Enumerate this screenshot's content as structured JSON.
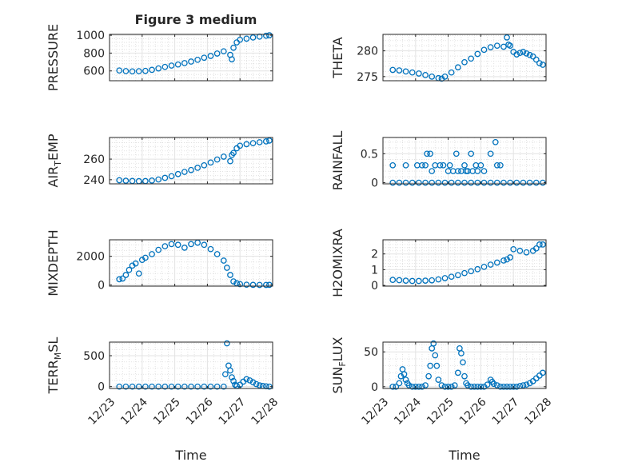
{
  "figure": {
    "title": "Figure 3 medium",
    "marker_color": "#0072BD"
  },
  "chart_data": [
    {
      "type": "scatter",
      "ylabel_parts": [
        [
          "PRESSURE",
          ""
        ]
      ],
      "xlim": [
        0,
        5
      ],
      "ylim": [
        490,
        1010
      ],
      "yticks": [
        600,
        800,
        1000
      ],
      "yticklabels": [
        "600",
        "800",
        "1000"
      ],
      "xticks": [
        0,
        1,
        2,
        3,
        4,
        5
      ],
      "xticklabels": [],
      "grid": true,
      "minor_grid": true,
      "series": [
        {
          "x": [
            0.3,
            0.5,
            0.7,
            0.9,
            1.1,
            1.3,
            1.5,
            1.7,
            1.9,
            2.1,
            2.3,
            2.5,
            2.7,
            2.9,
            3.1,
            3.3,
            3.5,
            3.7,
            3.75,
            3.8,
            3.9,
            4.0,
            4.2,
            4.4,
            4.6,
            4.8,
            4.9
          ],
          "y": [
            605,
            598,
            595,
            597,
            600,
            612,
            628,
            645,
            660,
            672,
            688,
            705,
            725,
            748,
            768,
            795,
            820,
            780,
            730,
            860,
            920,
            950,
            962,
            975,
            985,
            995,
            1000
          ]
        }
      ]
    },
    {
      "type": "scatter",
      "ylabel_parts": [
        [
          "THETA",
          ""
        ]
      ],
      "xlim": [
        0,
        5
      ],
      "ylim": [
        274.2,
        283.2
      ],
      "yticks": [
        275,
        280
      ],
      "yticklabels": [
        "275",
        "280"
      ],
      "xticks": [
        0,
        1,
        2,
        3,
        4,
        5
      ],
      "xticklabels": [],
      "grid": true,
      "minor_grid": true,
      "series": [
        {
          "x": [
            0.3,
            0.5,
            0.7,
            0.9,
            1.1,
            1.3,
            1.5,
            1.7,
            1.8,
            1.9,
            2.1,
            2.3,
            2.5,
            2.7,
            2.9,
            3.1,
            3.3,
            3.5,
            3.7,
            3.8,
            3.85,
            3.9,
            4.0,
            4.1,
            4.2,
            4.3,
            4.4,
            4.5,
            4.6,
            4.7,
            4.8,
            4.9
          ],
          "y": [
            276.3,
            276.2,
            276.0,
            275.8,
            275.6,
            275.3,
            275.0,
            274.7,
            274.6,
            275.0,
            275.8,
            276.8,
            277.8,
            278.5,
            279.4,
            280.2,
            280.7,
            281.0,
            280.8,
            282.6,
            281.2,
            281.0,
            279.8,
            279.3,
            279.6,
            279.8,
            279.5,
            279.2,
            278.9,
            278.3,
            277.6,
            277.3
          ]
        }
      ]
    },
    {
      "type": "scatter",
      "ylabel_parts": [
        [
          "AIR",
          ""
        ],
        [
          "T",
          "sub"
        ],
        [
          "EMP",
          ""
        ]
      ],
      "xlim": [
        0,
        5
      ],
      "ylim": [
        236,
        281
      ],
      "yticks": [
        240,
        260
      ],
      "yticklabels": [
        "240",
        "260"
      ],
      "xticks": [
        0,
        1,
        2,
        3,
        4,
        5
      ],
      "xticklabels": [],
      "grid": true,
      "minor_grid": true,
      "series": [
        {
          "x": [
            0.3,
            0.5,
            0.7,
            0.9,
            1.1,
            1.3,
            1.5,
            1.7,
            1.9,
            2.1,
            2.3,
            2.5,
            2.7,
            2.9,
            3.1,
            3.3,
            3.5,
            3.7,
            3.75,
            3.8,
            3.9,
            4.0,
            4.2,
            4.4,
            4.6,
            4.8,
            4.9
          ],
          "y": [
            239.5,
            239.0,
            238.8,
            238.6,
            238.7,
            239.2,
            240.2,
            241.8,
            243.4,
            245.5,
            247.6,
            249.4,
            251.6,
            254.0,
            256.7,
            259.6,
            262.4,
            258.0,
            264.0,
            266.0,
            270.5,
            273.0,
            274.5,
            275.5,
            276.4,
            277.2,
            278.0
          ]
        }
      ]
    },
    {
      "type": "scatter",
      "ylabel_parts": [
        [
          "RAINFALL",
          ""
        ]
      ],
      "xlim": [
        0,
        5
      ],
      "ylim": [
        -0.02,
        0.78
      ],
      "yticks": [
        0,
        0.5
      ],
      "yticklabels": [
        "0",
        "0.5"
      ],
      "xticks": [
        0,
        1,
        2,
        3,
        4,
        5
      ],
      "xticklabels": [],
      "grid": true,
      "minor_grid": true,
      "series": [
        {
          "x": [
            0.3,
            0.5,
            0.7,
            0.9,
            1.1,
            1.3,
            1.5,
            1.7,
            1.9,
            2.1,
            2.3,
            2.5,
            2.7,
            2.9,
            3.1,
            3.3,
            3.5,
            3.7,
            3.9,
            4.1,
            4.3,
            4.5,
            4.7,
            4.9,
            0.3,
            0.7,
            1.05,
            1.2,
            1.3,
            1.35,
            1.45,
            1.5,
            1.6,
            1.75,
            1.85,
            2.0,
            2.05,
            2.15,
            2.25,
            2.3,
            2.4,
            2.5,
            2.55,
            2.6,
            2.7,
            2.75,
            2.85,
            2.9,
            3.0,
            3.1,
            3.3,
            3.45,
            3.5,
            3.6
          ],
          "y": [
            0,
            0,
            0,
            0,
            0,
            0,
            0,
            0,
            0,
            0,
            0,
            0,
            0,
            0,
            0,
            0,
            0,
            0,
            0,
            0,
            0,
            0,
            0,
            0,
            0.3,
            0.3,
            0.3,
            0.3,
            0.3,
            0.5,
            0.5,
            0.2,
            0.3,
            0.3,
            0.3,
            0.2,
            0.3,
            0.2,
            0.5,
            0.2,
            0.2,
            0.3,
            0.2,
            0.2,
            0.5,
            0.2,
            0.3,
            0.2,
            0.3,
            0.2,
            0.5,
            0.7,
            0.3,
            0.3
          ]
        }
      ]
    },
    {
      "type": "scatter",
      "ylabel_parts": [
        [
          "MIXDEPTH",
          ""
        ]
      ],
      "xlim": [
        0,
        5
      ],
      "ylim": [
        -80,
        3150
      ],
      "yticks": [
        0,
        2000
      ],
      "yticklabels": [
        "0",
        "2000"
      ],
      "xticks": [
        0,
        1,
        2,
        3,
        4,
        5
      ],
      "xticklabels": [],
      "grid": true,
      "minor_grid": true,
      "series": [
        {
          "x": [
            0.3,
            0.4,
            0.5,
            0.6,
            0.7,
            0.8,
            0.9,
            1.0,
            1.1,
            1.3,
            1.5,
            1.7,
            1.9,
            2.1,
            2.3,
            2.5,
            2.7,
            2.9,
            3.1,
            3.3,
            3.5,
            3.6,
            3.7,
            3.8,
            3.9,
            4.0,
            4.2,
            4.4,
            4.6,
            4.8,
            4.9
          ],
          "y": [
            400,
            450,
            700,
            1050,
            1350,
            1500,
            800,
            1750,
            1900,
            2150,
            2450,
            2700,
            2850,
            2800,
            2600,
            2850,
            2950,
            2800,
            2500,
            2150,
            1700,
            1200,
            700,
            250,
            120,
            60,
            20,
            10,
            5,
            5,
            10
          ]
        }
      ]
    },
    {
      "type": "scatter",
      "ylabel_parts": [
        [
          "H2OMIXRA",
          ""
        ]
      ],
      "xlim": [
        0,
        5
      ],
      "ylim": [
        -0.05,
        2.9
      ],
      "yticks": [
        0,
        1,
        2
      ],
      "yticklabels": [
        "0",
        "1",
        "2"
      ],
      "xticks": [
        0,
        1,
        2,
        3,
        4,
        5
      ],
      "xticklabels": [],
      "grid": true,
      "minor_grid": true,
      "series": [
        {
          "x": [
            0.3,
            0.5,
            0.7,
            0.9,
            1.1,
            1.3,
            1.5,
            1.7,
            1.9,
            2.1,
            2.3,
            2.5,
            2.7,
            2.9,
            3.1,
            3.3,
            3.5,
            3.7,
            3.8,
            3.9,
            4.0,
            4.2,
            4.4,
            4.6,
            4.7,
            4.8,
            4.9
          ],
          "y": [
            0.35,
            0.33,
            0.3,
            0.28,
            0.28,
            0.3,
            0.32,
            0.38,
            0.46,
            0.55,
            0.65,
            0.78,
            0.9,
            1.03,
            1.18,
            1.32,
            1.45,
            1.58,
            1.65,
            1.78,
            2.3,
            2.2,
            2.1,
            2.2,
            2.35,
            2.6,
            2.6
          ]
        }
      ]
    },
    {
      "type": "scatter",
      "ylabel_parts": [
        [
          "TERR",
          ""
        ],
        [
          "M",
          "sub"
        ],
        [
          "SL",
          ""
        ]
      ],
      "xlim": [
        0,
        5
      ],
      "ylim": [
        -30,
        720
      ],
      "yticks": [
        0,
        500
      ],
      "yticklabels": [
        "0",
        "500"
      ],
      "xticks": [
        0,
        1,
        2,
        3,
        4,
        5
      ],
      "xticklabels": [
        "12/23",
        "12/24",
        "12/25",
        "12/26",
        "12/27",
        "12/28"
      ],
      "xlabel": "Time",
      "grid": true,
      "minor_grid": true,
      "series": [
        {
          "x": [
            0.3,
            0.5,
            0.7,
            0.9,
            1.1,
            1.3,
            1.5,
            1.7,
            1.9,
            2.1,
            2.3,
            2.5,
            2.7,
            2.9,
            3.1,
            3.3,
            3.5,
            3.55,
            3.6,
            3.65,
            3.7,
            3.75,
            3.8,
            3.85,
            3.9,
            4.0,
            4.1,
            4.2,
            4.3,
            4.4,
            4.5,
            4.6,
            4.7,
            4.8,
            4.9
          ],
          "y": [
            0,
            0,
            0,
            0,
            0,
            0,
            0,
            0,
            0,
            0,
            0,
            0,
            0,
            0,
            0,
            0,
            0,
            200,
            700,
            340,
            260,
            150,
            90,
            30,
            10,
            30,
            80,
            120,
            100,
            70,
            40,
            20,
            10,
            5,
            0
          ]
        }
      ]
    },
    {
      "type": "scatter",
      "ylabel_parts": [
        [
          "SUN",
          ""
        ],
        [
          "F",
          "sub"
        ],
        [
          "LUX",
          ""
        ]
      ],
      "xlim": [
        0,
        5
      ],
      "ylim": [
        -2.5,
        64
      ],
      "yticks": [
        0,
        50
      ],
      "yticklabels": [
        "0",
        "50"
      ],
      "xticks": [
        0,
        1,
        2,
        3,
        4,
        5
      ],
      "xticklabels": [
        "12/23",
        "12/24",
        "12/25",
        "12/26",
        "12/27",
        "12/28"
      ],
      "xlabel": "Time",
      "grid": true,
      "minor_grid": true,
      "series": [
        {
          "x": [
            0.3,
            0.4,
            0.5,
            0.55,
            0.6,
            0.65,
            0.7,
            0.75,
            0.8,
            0.9,
            1.0,
            1.1,
            1.2,
            1.3,
            1.4,
            1.45,
            1.5,
            1.55,
            1.6,
            1.65,
            1.7,
            1.8,
            1.9,
            2.0,
            2.1,
            2.2,
            2.3,
            2.35,
            2.4,
            2.45,
            2.5,
            2.55,
            2.6,
            2.7,
            2.8,
            2.9,
            3.0,
            3.1,
            3.2,
            3.3,
            3.35,
            3.4,
            3.5,
            3.6,
            3.7,
            3.8,
            3.9,
            4.0,
            4.1,
            4.2,
            4.3,
            4.4,
            4.5,
            4.6,
            4.7,
            4.8,
            4.9
          ],
          "y": [
            0,
            0,
            5,
            15,
            25,
            18,
            10,
            5,
            2,
            0,
            0,
            0,
            0,
            2,
            15,
            30,
            55,
            62,
            45,
            30,
            10,
            2,
            0,
            0,
            0,
            2,
            20,
            55,
            48,
            35,
            15,
            5,
            2,
            0,
            0,
            0,
            0,
            0,
            3,
            10,
            7,
            4,
            2,
            0,
            0,
            0,
            0,
            0,
            0,
            1,
            2,
            3,
            5,
            8,
            12,
            16,
            20
          ]
        }
      ]
    }
  ]
}
